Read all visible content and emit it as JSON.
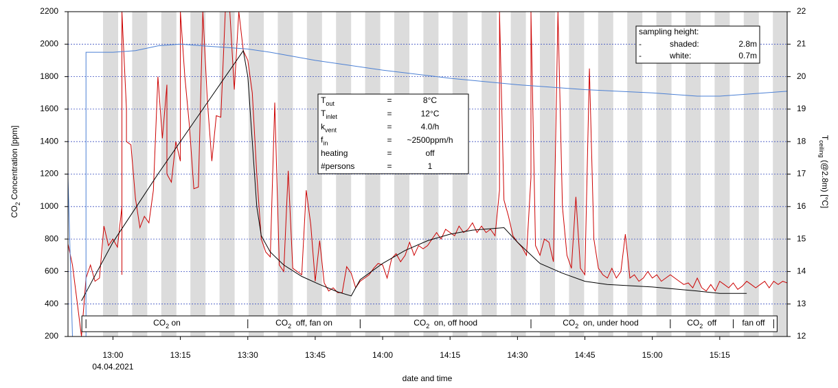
{
  "chart_data": {
    "type": "line",
    "x_label": "date and time",
    "x_date_label": "04.04.2021",
    "y_label": {
      "pre": "CO",
      "sub": "2",
      "post": " Concentration [ppm]"
    },
    "y2_label": {
      "pre": "T",
      "sub": "ceiling",
      "post": " (@2.8m) [°C]"
    },
    "xlim": [
      "12:50",
      "15:30"
    ],
    "xticks": [
      "13:00",
      "13:15",
      "13:30",
      "13:45",
      "14:00",
      "14:15",
      "14:30",
      "14:45",
      "15:00",
      "15:15"
    ],
    "ylim": [
      200,
      2200
    ],
    "yticks": [
      200,
      400,
      600,
      800,
      1000,
      1200,
      1400,
      1600,
      1800,
      2000,
      2200
    ],
    "y2lim": [
      12,
      22
    ],
    "y2ticks": [
      12,
      13,
      14,
      15,
      16,
      17,
      18,
      19,
      20,
      21,
      22
    ],
    "grid": true,
    "series": [
      {
        "color": "#cc0000",
        "x": [
          "12:50",
          "12:51",
          "12:52",
          "12:53",
          "12:54",
          "12:55",
          "12:56",
          "12:57",
          "12:58",
          "12:59",
          "13:00",
          "13:01",
          "13:02",
          "13:02",
          "13:02",
          "13:03",
          "13:03",
          "13:04",
          "13:05",
          "13:06",
          "13:07",
          "13:08",
          "13:09",
          "13:10",
          "13:11",
          "13:12",
          "13:12",
          "13:13",
          "13:14",
          "13:15",
          "13:15",
          "13:16",
          "13:17",
          "13:18",
          "13:19",
          "13:20",
          "13:21",
          "13:22",
          "13:23",
          "13:24",
          "13:25",
          "13:26",
          "13:27",
          "13:28",
          "13:29",
          "13:30",
          "13:31",
          "13:32",
          "13:33",
          "13:34",
          "13:35",
          "13:36",
          "13:37",
          "13:38",
          "13:39",
          "13:40",
          "13:41",
          "13:42",
          "13:43",
          "13:44",
          "13:45",
          "13:46",
          "13:47",
          "13:48",
          "13:49",
          "13:50",
          "13:51",
          "13:52",
          "13:53",
          "13:54",
          "13:55",
          "13:56",
          "13:57",
          "13:58",
          "13:59",
          "14:00",
          "14:01",
          "14:02",
          "14:03",
          "14:04",
          "14:05",
          "14:06",
          "14:07",
          "14:08",
          "14:09",
          "14:10",
          "14:11",
          "14:12",
          "14:13",
          "14:14",
          "14:15",
          "14:16",
          "14:17",
          "14:18",
          "14:19",
          "14:20",
          "14:21",
          "14:22",
          "14:23",
          "14:24",
          "14:25",
          "14:26",
          "14:26",
          "14:27",
          "14:28",
          "14:29",
          "14:30",
          "14:31",
          "14:32",
          "14:33",
          "14:33",
          "14:34",
          "14:35",
          "14:36",
          "14:37",
          "14:38",
          "14:39",
          "14:40",
          "14:41",
          "14:42",
          "14:43",
          "14:44",
          "14:45",
          "14:46",
          "14:47",
          "14:48",
          "14:49",
          "14:50",
          "14:51",
          "14:52",
          "14:53",
          "14:54",
          "14:55",
          "14:56",
          "14:57",
          "14:58",
          "14:59",
          "15:00",
          "15:01",
          "15:02",
          "15:03",
          "15:04",
          "15:05",
          "15:06",
          "15:07",
          "15:08",
          "15:09",
          "15:10",
          "15:11",
          "15:12",
          "15:13",
          "15:14",
          "15:15",
          "15:16",
          "15:17",
          "15:18",
          "15:19",
          "15:20",
          "15:21",
          "15:22",
          "15:23",
          "15:24",
          "15:25",
          "15:26",
          "15:27",
          "15:28",
          "15:29",
          "15:30"
        ],
        "values": [
          770,
          640,
          420,
          200,
          560,
          640,
          540,
          560,
          880,
          760,
          800,
          750,
          1000,
          580,
          2200,
          1600,
          1400,
          1380,
          1050,
          870,
          940,
          900,
          1100,
          1800,
          1420,
          1750,
          1200,
          1150,
          1400,
          1280,
          2200,
          1800,
          1500,
          1110,
          1120,
          2200,
          1650,
          1280,
          1560,
          1550,
          2200,
          2200,
          1720,
          2200,
          1960,
          1900,
          1700,
          1200,
          800,
          720,
          690,
          1640,
          640,
          600,
          1220,
          620,
          600,
          580,
          1100,
          890,
          540,
          790,
          530,
          480,
          500,
          470,
          470,
          630,
          590,
          500,
          540,
          560,
          580,
          620,
          650,
          640,
          560,
          680,
          710,
          660,
          700,
          780,
          700,
          760,
          740,
          760,
          800,
          840,
          800,
          860,
          840,
          820,
          880,
          840,
          860,
          900,
          840,
          880,
          840,
          860,
          820,
          1100,
          2200,
          1040,
          940,
          820,
          780,
          750,
          700,
          1180,
          2200,
          760,
          700,
          800,
          780,
          660,
          2200,
          1000,
          700,
          620,
          1060,
          620,
          580,
          1850,
          800,
          620,
          580,
          560,
          620,
          560,
          600,
          830,
          560,
          580,
          540,
          560,
          600,
          560,
          580,
          540,
          560,
          580,
          560,
          540,
          520,
          530,
          500,
          560,
          500,
          480,
          520,
          480,
          540,
          520,
          500,
          530,
          490,
          510,
          540,
          520,
          500,
          520,
          540,
          500,
          540,
          520,
          540,
          530
        ]
      },
      {
        "color": "#000000",
        "x": [
          "12:53",
          "13:00",
          "13:10",
          "13:20",
          "13:29",
          "13:30",
          "13:31",
          "13:32",
          "13:33",
          "13:35",
          "13:38",
          "13:42",
          "13:46",
          "13:50",
          "13:53",
          "13:55",
          "14:00",
          "14:05",
          "14:10",
          "14:15",
          "14:20",
          "14:27",
          "14:30",
          "14:35",
          "14:40",
          "14:45",
          "14:50",
          "15:00",
          "15:10",
          "15:15",
          "15:21"
        ],
        "values": [
          420,
          780,
          1200,
          1600,
          1960,
          1800,
          1400,
          1000,
          820,
          720,
          640,
          570,
          520,
          475,
          450,
          550,
          650,
          730,
          790,
          830,
          855,
          870,
          780,
          650,
          590,
          540,
          520,
          505,
          480,
          465,
          465
        ]
      },
      {
        "color": "#4a7fd4",
        "axis": "y2",
        "x": [
          "12:50",
          "12:51",
          "12:54",
          "12:54",
          "13:00",
          "13:05",
          "13:10",
          "13:15",
          "13:20",
          "13:25",
          "13:30",
          "13:35",
          "13:45",
          "14:00",
          "14:15",
          "14:30",
          "14:45",
          "15:00",
          "15:10",
          "15:15",
          "15:20",
          "15:30"
        ],
        "values": [
          16.9,
          12,
          12,
          20.75,
          20.75,
          20.8,
          20.95,
          21.0,
          20.95,
          20.9,
          20.85,
          20.75,
          20.5,
          20.2,
          19.95,
          19.75,
          19.6,
          19.5,
          19.4,
          19.4,
          19.45,
          19.55
        ]
      }
    ],
    "info_box": {
      "rows": [
        {
          "name": "T",
          "sub": "out",
          "eq": "=",
          "value": "8°C"
        },
        {
          "name": "T",
          "sub": "inlet",
          "eq": "=",
          "value": "12°C"
        },
        {
          "name": "k",
          "sub": "vent",
          "eq": "=",
          "value": "4.0/h"
        },
        {
          "name": "f",
          "sub": "in",
          "eq": "=",
          "value": "~2500ppm/h"
        },
        {
          "name": "heating",
          "eq": "=",
          "value": "off"
        },
        {
          "name": "#persons",
          "eq": "=",
          "value": "1"
        }
      ]
    },
    "sampling_legend": {
      "title": "sampling height:",
      "rows": [
        {
          "dash": "-",
          "label": "shaded:",
          "value": "2.8m"
        },
        {
          "dash": "-",
          "label": "white:",
          "value": "0.7m"
        }
      ]
    },
    "phases": {
      "boundaries": [
        "12:54",
        "13:30",
        "13:55",
        "14:33",
        "15:04",
        "15:18",
        "15:27"
      ],
      "labels": [
        {
          "pre": "CO",
          "sub": "2",
          "post": " on"
        },
        {
          "pre": "CO",
          "sub": "2",
          "post": "  off, fan on"
        },
        {
          "pre": "CO",
          "sub": "2",
          "post": "  on, off hood"
        },
        {
          "pre": "CO",
          "sub": "2",
          "post": "  on, under hood"
        },
        {
          "pre": "CO",
          "sub": "2",
          "post": "  off"
        },
        {
          "pre": "fan off"
        }
      ]
    }
  }
}
